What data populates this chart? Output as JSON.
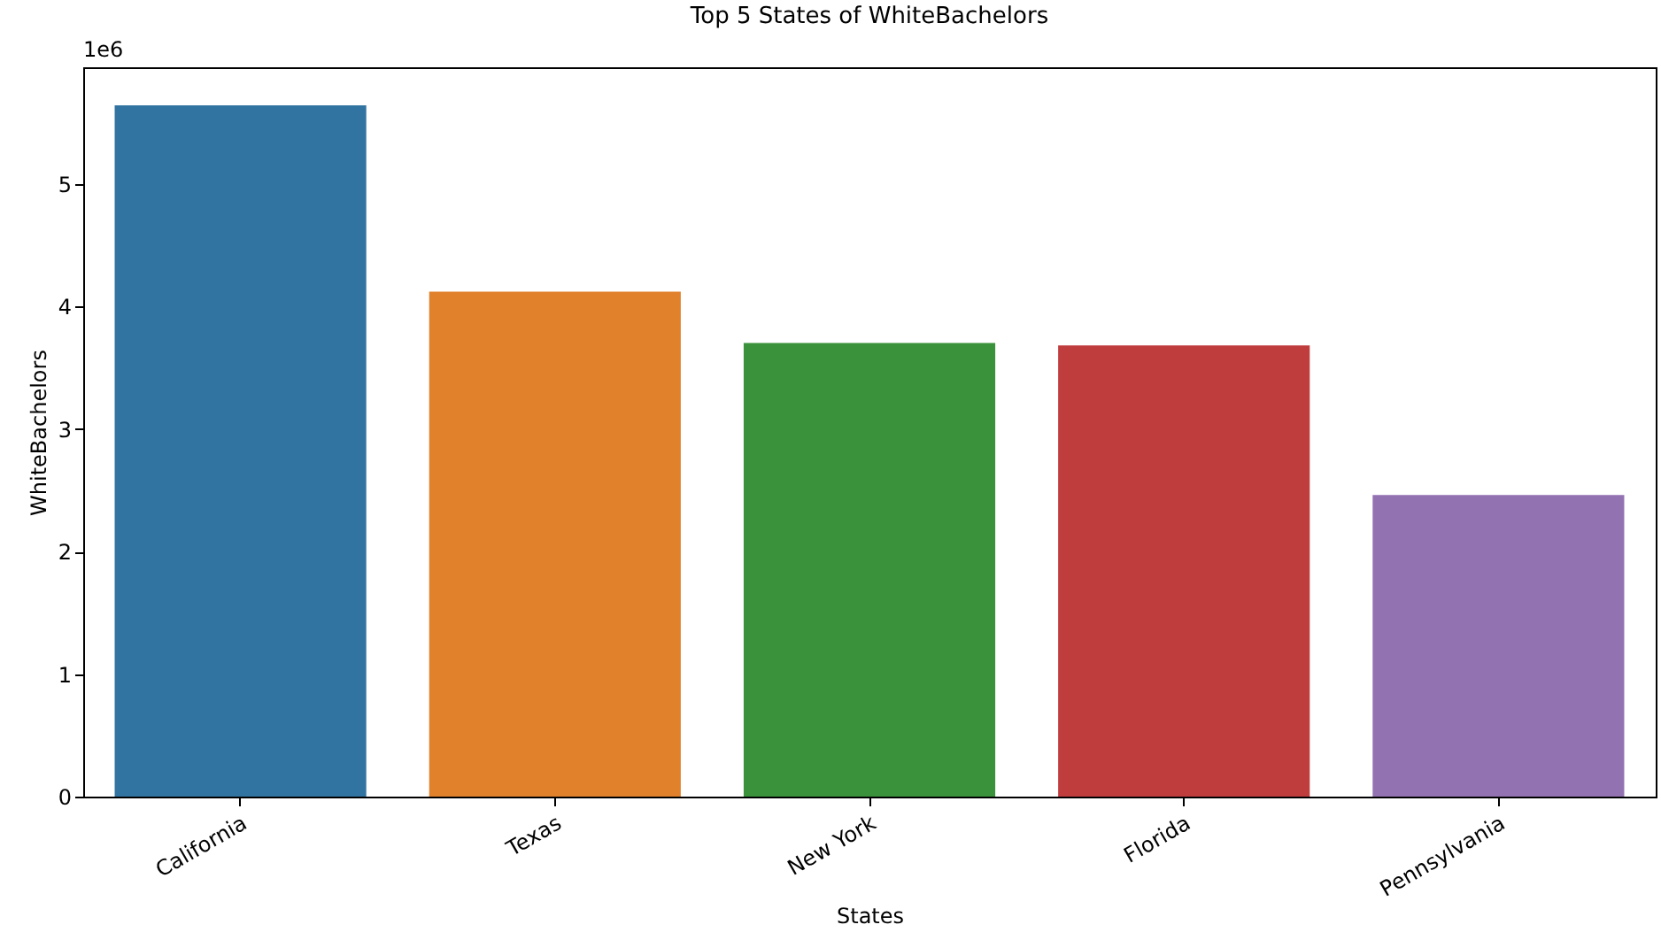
{
  "chart_data": {
    "type": "bar",
    "title": "Top 5 States of WhiteBachelors",
    "xlabel": "States",
    "ylabel": "WhiteBachelors",
    "categories": [
      "California",
      "Texas",
      "New York",
      "Florida",
      "Pennsylvania"
    ],
    "values": [
      5.64,
      4.12,
      3.7,
      3.68,
      2.46
    ],
    "colors": [
      "#3274a1",
      "#e1812c",
      "#3a923a",
      "#c03d3e",
      "#9372b2"
    ],
    "ylim": [
      0,
      5.95
    ],
    "yticks": [
      0,
      1,
      2,
      3,
      4,
      5
    ],
    "annotations": [
      "1e6"
    ],
    "grid": false
  }
}
